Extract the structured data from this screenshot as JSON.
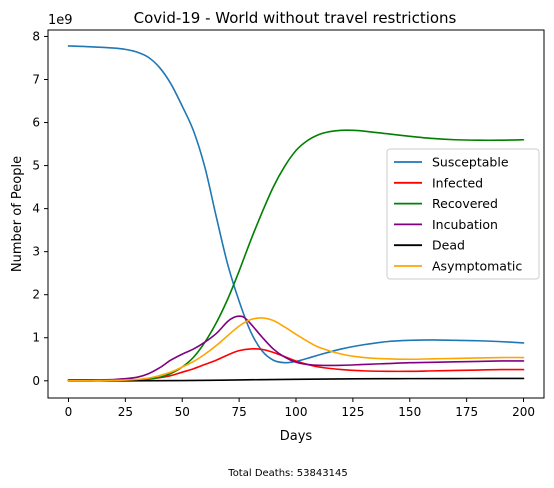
{
  "chart_data": {
    "type": "line",
    "title": "Covid-19 - World without travel restrictions",
    "xlabel": "Days",
    "ylabel": "Number of People",
    "y_offset_label": "1e9",
    "xlim": [
      -9,
      209
    ],
    "ylim": [
      -0.4,
      8.15
    ],
    "x_ticks": [
      0,
      25,
      50,
      75,
      100,
      125,
      150,
      175,
      200
    ],
    "x_tick_labels": [
      "0",
      "25",
      "50",
      "75",
      "100",
      "125",
      "150",
      "175",
      "200"
    ],
    "y_ticks": [
      0,
      1,
      2,
      3,
      4,
      5,
      6,
      7,
      8
    ],
    "y_tick_labels": [
      "0",
      "1",
      "2",
      "3",
      "4",
      "5",
      "6",
      "7",
      "8"
    ],
    "grid": false,
    "legend_position": "center-right",
    "footer": "Total Deaths: 53843145",
    "series": [
      {
        "name": "Susceptable",
        "color": "#1f77b4",
        "x": [
          0,
          10,
          20,
          25,
          30,
          35,
          40,
          45,
          50,
          55,
          60,
          65,
          70,
          75,
          80,
          85,
          90,
          95,
          100,
          105,
          110,
          120,
          130,
          140,
          150,
          160,
          170,
          180,
          190,
          200
        ],
        "y": [
          7.78,
          7.76,
          7.73,
          7.7,
          7.64,
          7.52,
          7.28,
          6.9,
          6.38,
          5.8,
          4.95,
          3.8,
          2.7,
          1.85,
          1.15,
          0.7,
          0.48,
          0.42,
          0.45,
          0.52,
          0.6,
          0.74,
          0.84,
          0.91,
          0.94,
          0.95,
          0.94,
          0.93,
          0.91,
          0.88
        ]
      },
      {
        "name": "Infected",
        "color": "#ff0000",
        "x": [
          0,
          10,
          20,
          30,
          35,
          40,
          45,
          50,
          55,
          60,
          65,
          70,
          75,
          80,
          85,
          90,
          95,
          100,
          105,
          110,
          120,
          130,
          140,
          150,
          160,
          170,
          180,
          190,
          200
        ],
        "y": [
          0.0,
          0.0,
          0.01,
          0.02,
          0.04,
          0.07,
          0.12,
          0.2,
          0.28,
          0.38,
          0.48,
          0.6,
          0.7,
          0.74,
          0.73,
          0.66,
          0.56,
          0.46,
          0.38,
          0.32,
          0.26,
          0.23,
          0.22,
          0.22,
          0.23,
          0.24,
          0.25,
          0.26,
          0.26
        ]
      },
      {
        "name": "Recovered",
        "color": "#008000",
        "x": [
          0,
          10,
          20,
          30,
          35,
          40,
          45,
          50,
          55,
          60,
          65,
          70,
          75,
          80,
          85,
          90,
          95,
          100,
          105,
          110,
          115,
          120,
          125,
          130,
          140,
          150,
          160,
          170,
          180,
          190,
          200
        ],
        "y": [
          0.0,
          0.0,
          0.01,
          0.02,
          0.04,
          0.08,
          0.17,
          0.32,
          0.55,
          0.9,
          1.35,
          1.9,
          2.55,
          3.25,
          3.9,
          4.5,
          4.98,
          5.35,
          5.58,
          5.72,
          5.79,
          5.82,
          5.82,
          5.8,
          5.74,
          5.68,
          5.63,
          5.6,
          5.59,
          5.59,
          5.6
        ]
      },
      {
        "name": "Incubation",
        "color": "#800080",
        "x": [
          0,
          10,
          20,
          25,
          30,
          35,
          40,
          45,
          50,
          55,
          60,
          65,
          70,
          73,
          75,
          77,
          80,
          85,
          90,
          95,
          100,
          105,
          110,
          120,
          130,
          140,
          150,
          160,
          170,
          180,
          190,
          200
        ],
        "y": [
          0.02,
          0.02,
          0.03,
          0.05,
          0.08,
          0.16,
          0.3,
          0.48,
          0.62,
          0.74,
          0.9,
          1.1,
          1.38,
          1.48,
          1.5,
          1.48,
          1.33,
          1.02,
          0.74,
          0.55,
          0.43,
          0.38,
          0.36,
          0.36,
          0.38,
          0.4,
          0.42,
          0.43,
          0.44,
          0.45,
          0.46,
          0.46
        ]
      },
      {
        "name": "Dead",
        "color": "#000000",
        "x": [
          0,
          25,
          50,
          75,
          100,
          125,
          150,
          175,
          200
        ],
        "y": [
          0.0,
          0.0,
          0.005,
          0.02,
          0.035,
          0.045,
          0.05,
          0.053,
          0.054
        ]
      },
      {
        "name": "Asymptomatic",
        "color": "#ffa500",
        "x": [
          0,
          10,
          20,
          30,
          35,
          40,
          45,
          50,
          55,
          60,
          65,
          70,
          75,
          80,
          85,
          90,
          95,
          100,
          105,
          110,
          120,
          130,
          140,
          150,
          160,
          170,
          180,
          190,
          200
        ],
        "y": [
          0.0,
          0.0,
          0.01,
          0.03,
          0.06,
          0.12,
          0.2,
          0.32,
          0.45,
          0.62,
          0.82,
          1.05,
          1.27,
          1.42,
          1.46,
          1.4,
          1.25,
          1.08,
          0.92,
          0.78,
          0.62,
          0.54,
          0.51,
          0.5,
          0.51,
          0.52,
          0.53,
          0.54,
          0.54
        ]
      }
    ]
  }
}
